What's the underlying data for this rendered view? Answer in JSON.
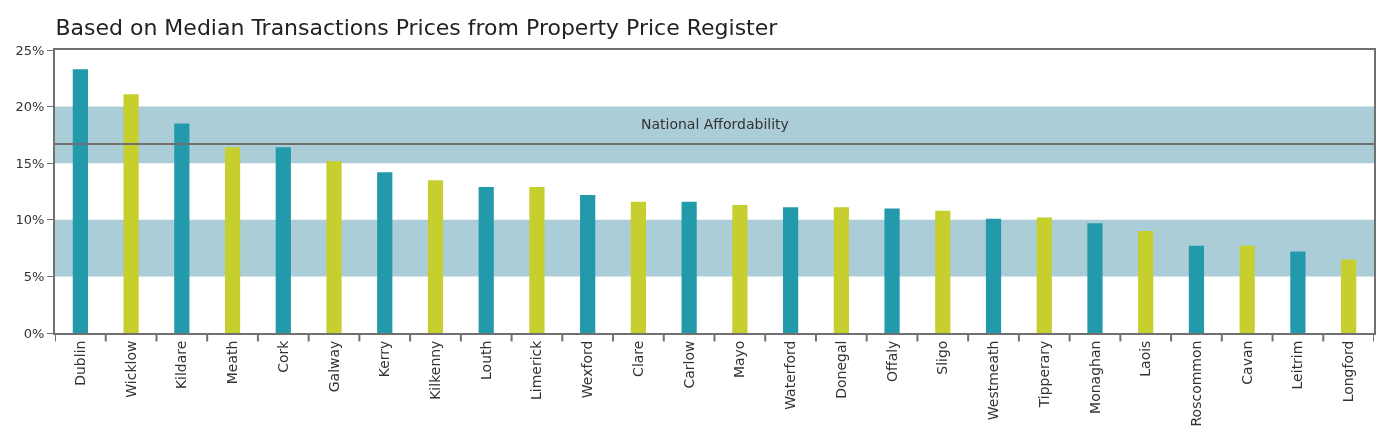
{
  "chart_data": {
    "type": "bar",
    "title": "Based on Median Transactions Prices from Property Price Register",
    "categories": [
      "Dublin",
      "Wicklow",
      "Kildare",
      "Meath",
      "Cork",
      "Galway",
      "Kerry",
      "Kilkenny",
      "Louth",
      "Limerick",
      "Wexford",
      "Clare",
      "Carlow",
      "Mayo",
      "Waterford",
      "Donegal",
      "Offaly",
      "Sligo",
      "Westmeath",
      "Tipperary",
      "Monaghan",
      "Laois",
      "Roscommon",
      "Cavan",
      "Leitrim",
      "Longford"
    ],
    "values": [
      23.3,
      21.1,
      18.5,
      16.4,
      16.4,
      15.2,
      14.2,
      13.5,
      12.9,
      12.9,
      12.2,
      11.6,
      11.6,
      11.3,
      11.1,
      11.1,
      11.0,
      10.8,
      10.1,
      10.2,
      9.7,
      9.0,
      7.7,
      7.7,
      7.2,
      6.5
    ],
    "colors": [
      "#229aab",
      "#c6cf2d",
      "#229aab",
      "#c6cf2d",
      "#229aab",
      "#c6cf2d",
      "#229aab",
      "#c6cf2d",
      "#229aab",
      "#c6cf2d",
      "#229aab",
      "#c6cf2d",
      "#229aab",
      "#c6cf2d",
      "#229aab",
      "#c6cf2d",
      "#229aab",
      "#c6cf2d",
      "#229aab",
      "#c6cf2d",
      "#229aab",
      "#c6cf2d",
      "#229aab",
      "#c6cf2d",
      "#229aab",
      "#c6cf2d"
    ],
    "ylim": [
      0,
      25
    ],
    "yticks": [
      {
        "value": 0,
        "label": "0%"
      },
      {
        "value": 5,
        "label": "5%"
      },
      {
        "value": 10,
        "label": "10%"
      },
      {
        "value": 15,
        "label": "15%"
      },
      {
        "value": 20,
        "label": "20%"
      },
      {
        "value": 25,
        "label": "25%"
      }
    ],
    "bands": [
      {
        "axis": "y",
        "from": 5,
        "to": 10,
        "color": "#abcdd8"
      },
      {
        "axis": "y",
        "from": 15,
        "to": 20,
        "color": "#abcdd8"
      }
    ],
    "ref_lines": [
      {
        "axis": "y",
        "value": 16.7,
        "label": "National Affordability",
        "color": "#707070"
      }
    ],
    "grid": false,
    "legend": false
  }
}
